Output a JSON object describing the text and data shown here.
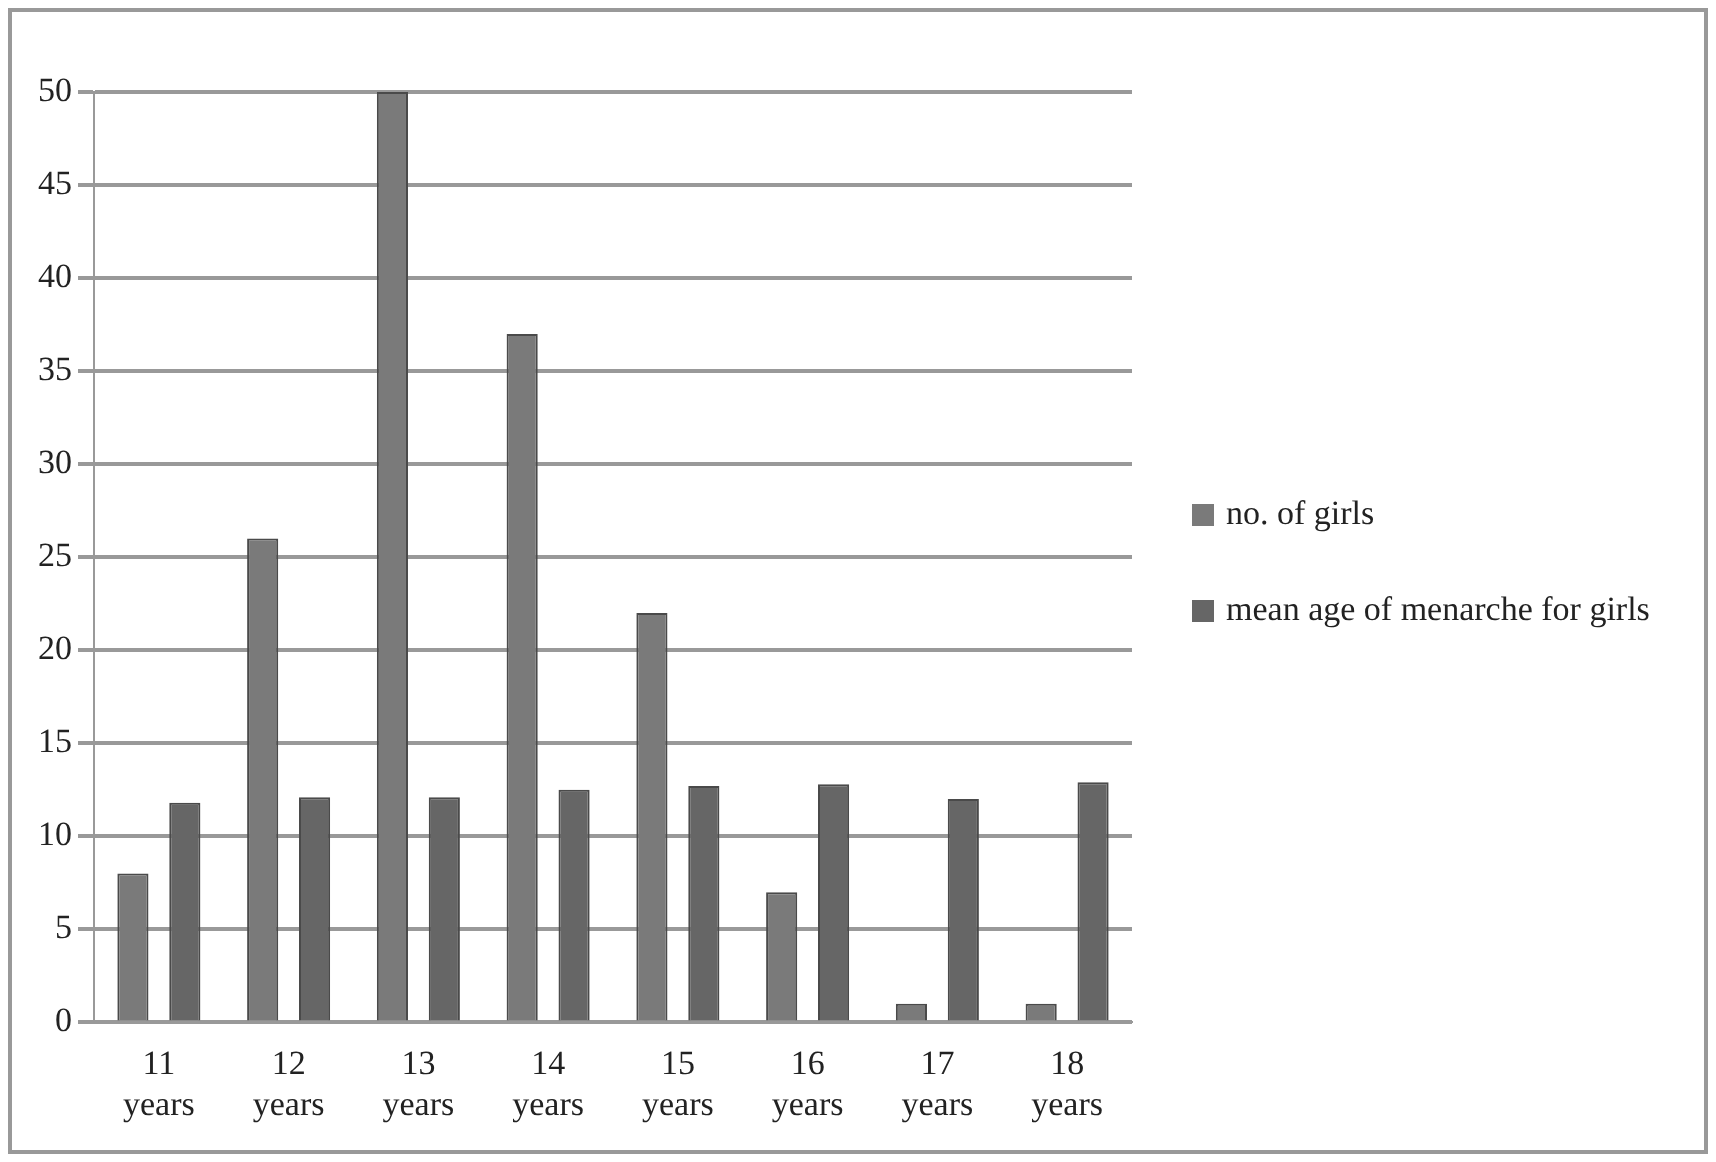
{
  "chart_data": {
    "type": "bar",
    "categories": [
      "11 years",
      "12 years",
      "13 years",
      "14 years",
      "15 years",
      "16 years",
      "17 years",
      "18 years"
    ],
    "series": [
      {
        "name": "no. of girls",
        "color": "#7a7a7a",
        "values": [
          8,
          26,
          50,
          37,
          22,
          7,
          1,
          1
        ]
      },
      {
        "name": "mean age of menarche for girls",
        "color": "#666666",
        "values": [
          11.8,
          12.1,
          12.1,
          12.5,
          12.7,
          12.8,
          12,
          12.9
        ]
      }
    ],
    "ylim": [
      0,
      50
    ],
    "yticks": [
      0,
      5,
      10,
      15,
      20,
      25,
      30,
      35,
      40,
      45,
      50
    ],
    "grid": "y",
    "legend": "right"
  }
}
